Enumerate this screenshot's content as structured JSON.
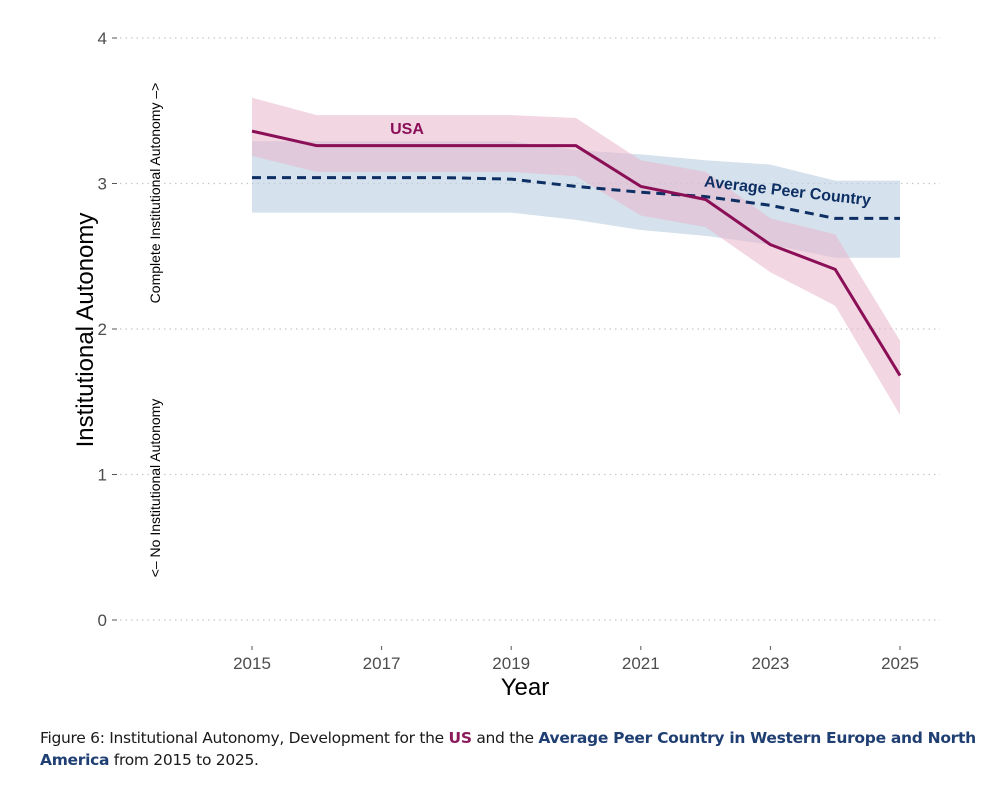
{
  "chart_data": {
    "type": "line",
    "title": "",
    "xlabel": "Year",
    "ylabel": "Institutional Autonomy",
    "xlim": [
      2015,
      2025
    ],
    "ylim": [
      0,
      4
    ],
    "x_ticks": [
      2015,
      2017,
      2019,
      2021,
      2023,
      2025
    ],
    "x_tick_labels": [
      "2015",
      "2017",
      "2019",
      "2021",
      "2023",
      "2025"
    ],
    "y_ticks": [
      0,
      1,
      2,
      3,
      4
    ],
    "y_tick_labels": [
      "0",
      "1",
      "2",
      "3",
      "4"
    ],
    "grid": "horizontal dotted",
    "y_annotation_low": "<– No Institutional Autonomy",
    "y_annotation_high": "Complete Institutional Autonomy –>",
    "x": [
      2015,
      2016,
      2017,
      2018,
      2019,
      2020,
      2021,
      2022,
      2023,
      2024,
      2025
    ],
    "series": [
      {
        "name": "USA",
        "label": "USA",
        "color": "#8b0f56",
        "band_color": "#e8b7cc",
        "line_style": "solid",
        "values": [
          3.36,
          3.26,
          3.26,
          3.26,
          3.26,
          3.26,
          2.98,
          2.89,
          2.58,
          2.41,
          1.68
        ],
        "upper": [
          3.59,
          3.47,
          3.47,
          3.47,
          3.47,
          3.45,
          3.16,
          3.08,
          2.76,
          2.65,
          1.92
        ],
        "lower": [
          3.19,
          3.08,
          3.08,
          3.08,
          3.08,
          3.05,
          2.78,
          2.7,
          2.39,
          2.16,
          1.41
        ]
      },
      {
        "name": "Average Peer Country",
        "label": "Average Peer Country",
        "color": "#0d2f63",
        "band_color": "#b9cde0",
        "line_style": "dashed",
        "values": [
          3.04,
          3.04,
          3.04,
          3.04,
          3.03,
          2.98,
          2.94,
          2.91,
          2.85,
          2.76,
          2.76
        ],
        "upper": [
          3.29,
          3.29,
          3.29,
          3.29,
          3.29,
          3.23,
          3.2,
          3.16,
          3.13,
          3.02,
          3.02
        ],
        "lower": [
          2.8,
          2.8,
          2.8,
          2.8,
          2.8,
          2.75,
          2.68,
          2.64,
          2.58,
          2.49,
          2.49
        ]
      }
    ]
  },
  "caption": {
    "prefix": "Figure 6: Institutional Autonomy, Development for the ",
    "us": "US",
    "middle": " and the ",
    "peer": "Average Peer Country in Western Europe and North America",
    "suffix": " from 2015 to 2025."
  }
}
